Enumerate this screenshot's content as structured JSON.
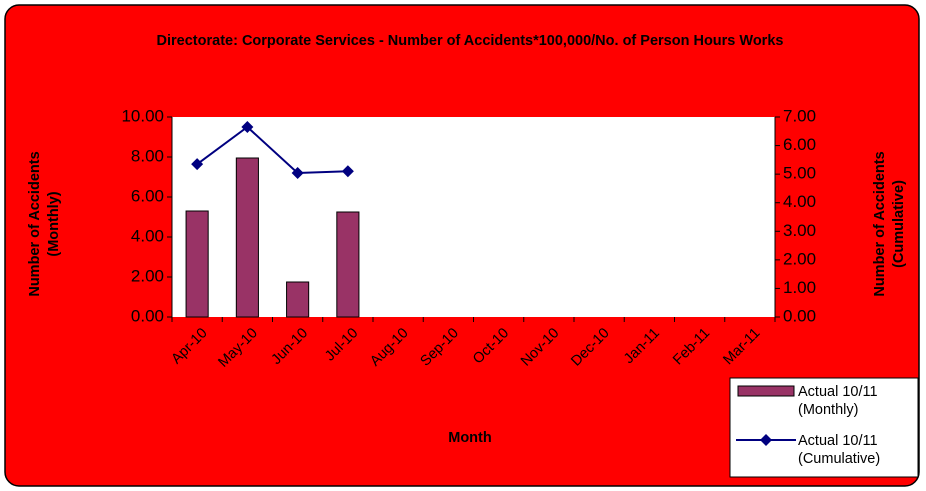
{
  "chart_data": {
    "type": "bar+line",
    "title": "Directorate: Corporate Services - Number of Accidents*100,000/No. of Person Hours Works",
    "x_label": "Month",
    "y_label": "Number of Accidents (Monthly)",
    "y2_label": "Number of Accidents (Cumulative)",
    "categories": [
      "Apr-10",
      "May-10",
      "Jun-10",
      "Jul-10",
      "Aug-10",
      "Sep-10",
      "Oct-10",
      "Nov-10",
      "Dec-10",
      "Jan-11",
      "Feb-11",
      "Mar-11"
    ],
    "series": [
      {
        "name": "Actual 10/11 (Monthly)",
        "type": "bar",
        "color": "#993366",
        "values": [
          5.3,
          7.95,
          1.75,
          5.25,
          null,
          null,
          null,
          null,
          null,
          null,
          null,
          null
        ]
      },
      {
        "name": "Actual 10/11 (Cumulative)",
        "type": "line",
        "axis": "y2",
        "color": "#000080",
        "values": [
          5.35,
          6.65,
          5.04,
          5.1,
          null,
          null,
          null,
          null,
          null,
          null,
          null,
          null
        ]
      }
    ],
    "ylim": [
      0,
      10
    ],
    "yticks": [
      {
        "value": 0,
        "label": "0.00"
      },
      {
        "value": 2,
        "label": "2.00"
      },
      {
        "value": 4,
        "label": "4.00"
      },
      {
        "value": 6,
        "label": "6.00"
      },
      {
        "value": 8,
        "label": "8.00"
      },
      {
        "value": 10,
        "label": "10.00"
      }
    ],
    "y2lim": [
      0,
      7
    ],
    "y2ticks": [
      {
        "value": 0,
        "label": "0.00"
      },
      {
        "value": 1,
        "label": "1.00"
      },
      {
        "value": 2,
        "label": "2.00"
      },
      {
        "value": 3,
        "label": "3.00"
      },
      {
        "value": 4,
        "label": "4.00"
      },
      {
        "value": 5,
        "label": "5.00"
      },
      {
        "value": 6,
        "label": "6.00"
      },
      {
        "value": 7,
        "label": "7.00"
      }
    ],
    "grid": false,
    "legend": "lower right",
    "background": "#ff0000"
  }
}
